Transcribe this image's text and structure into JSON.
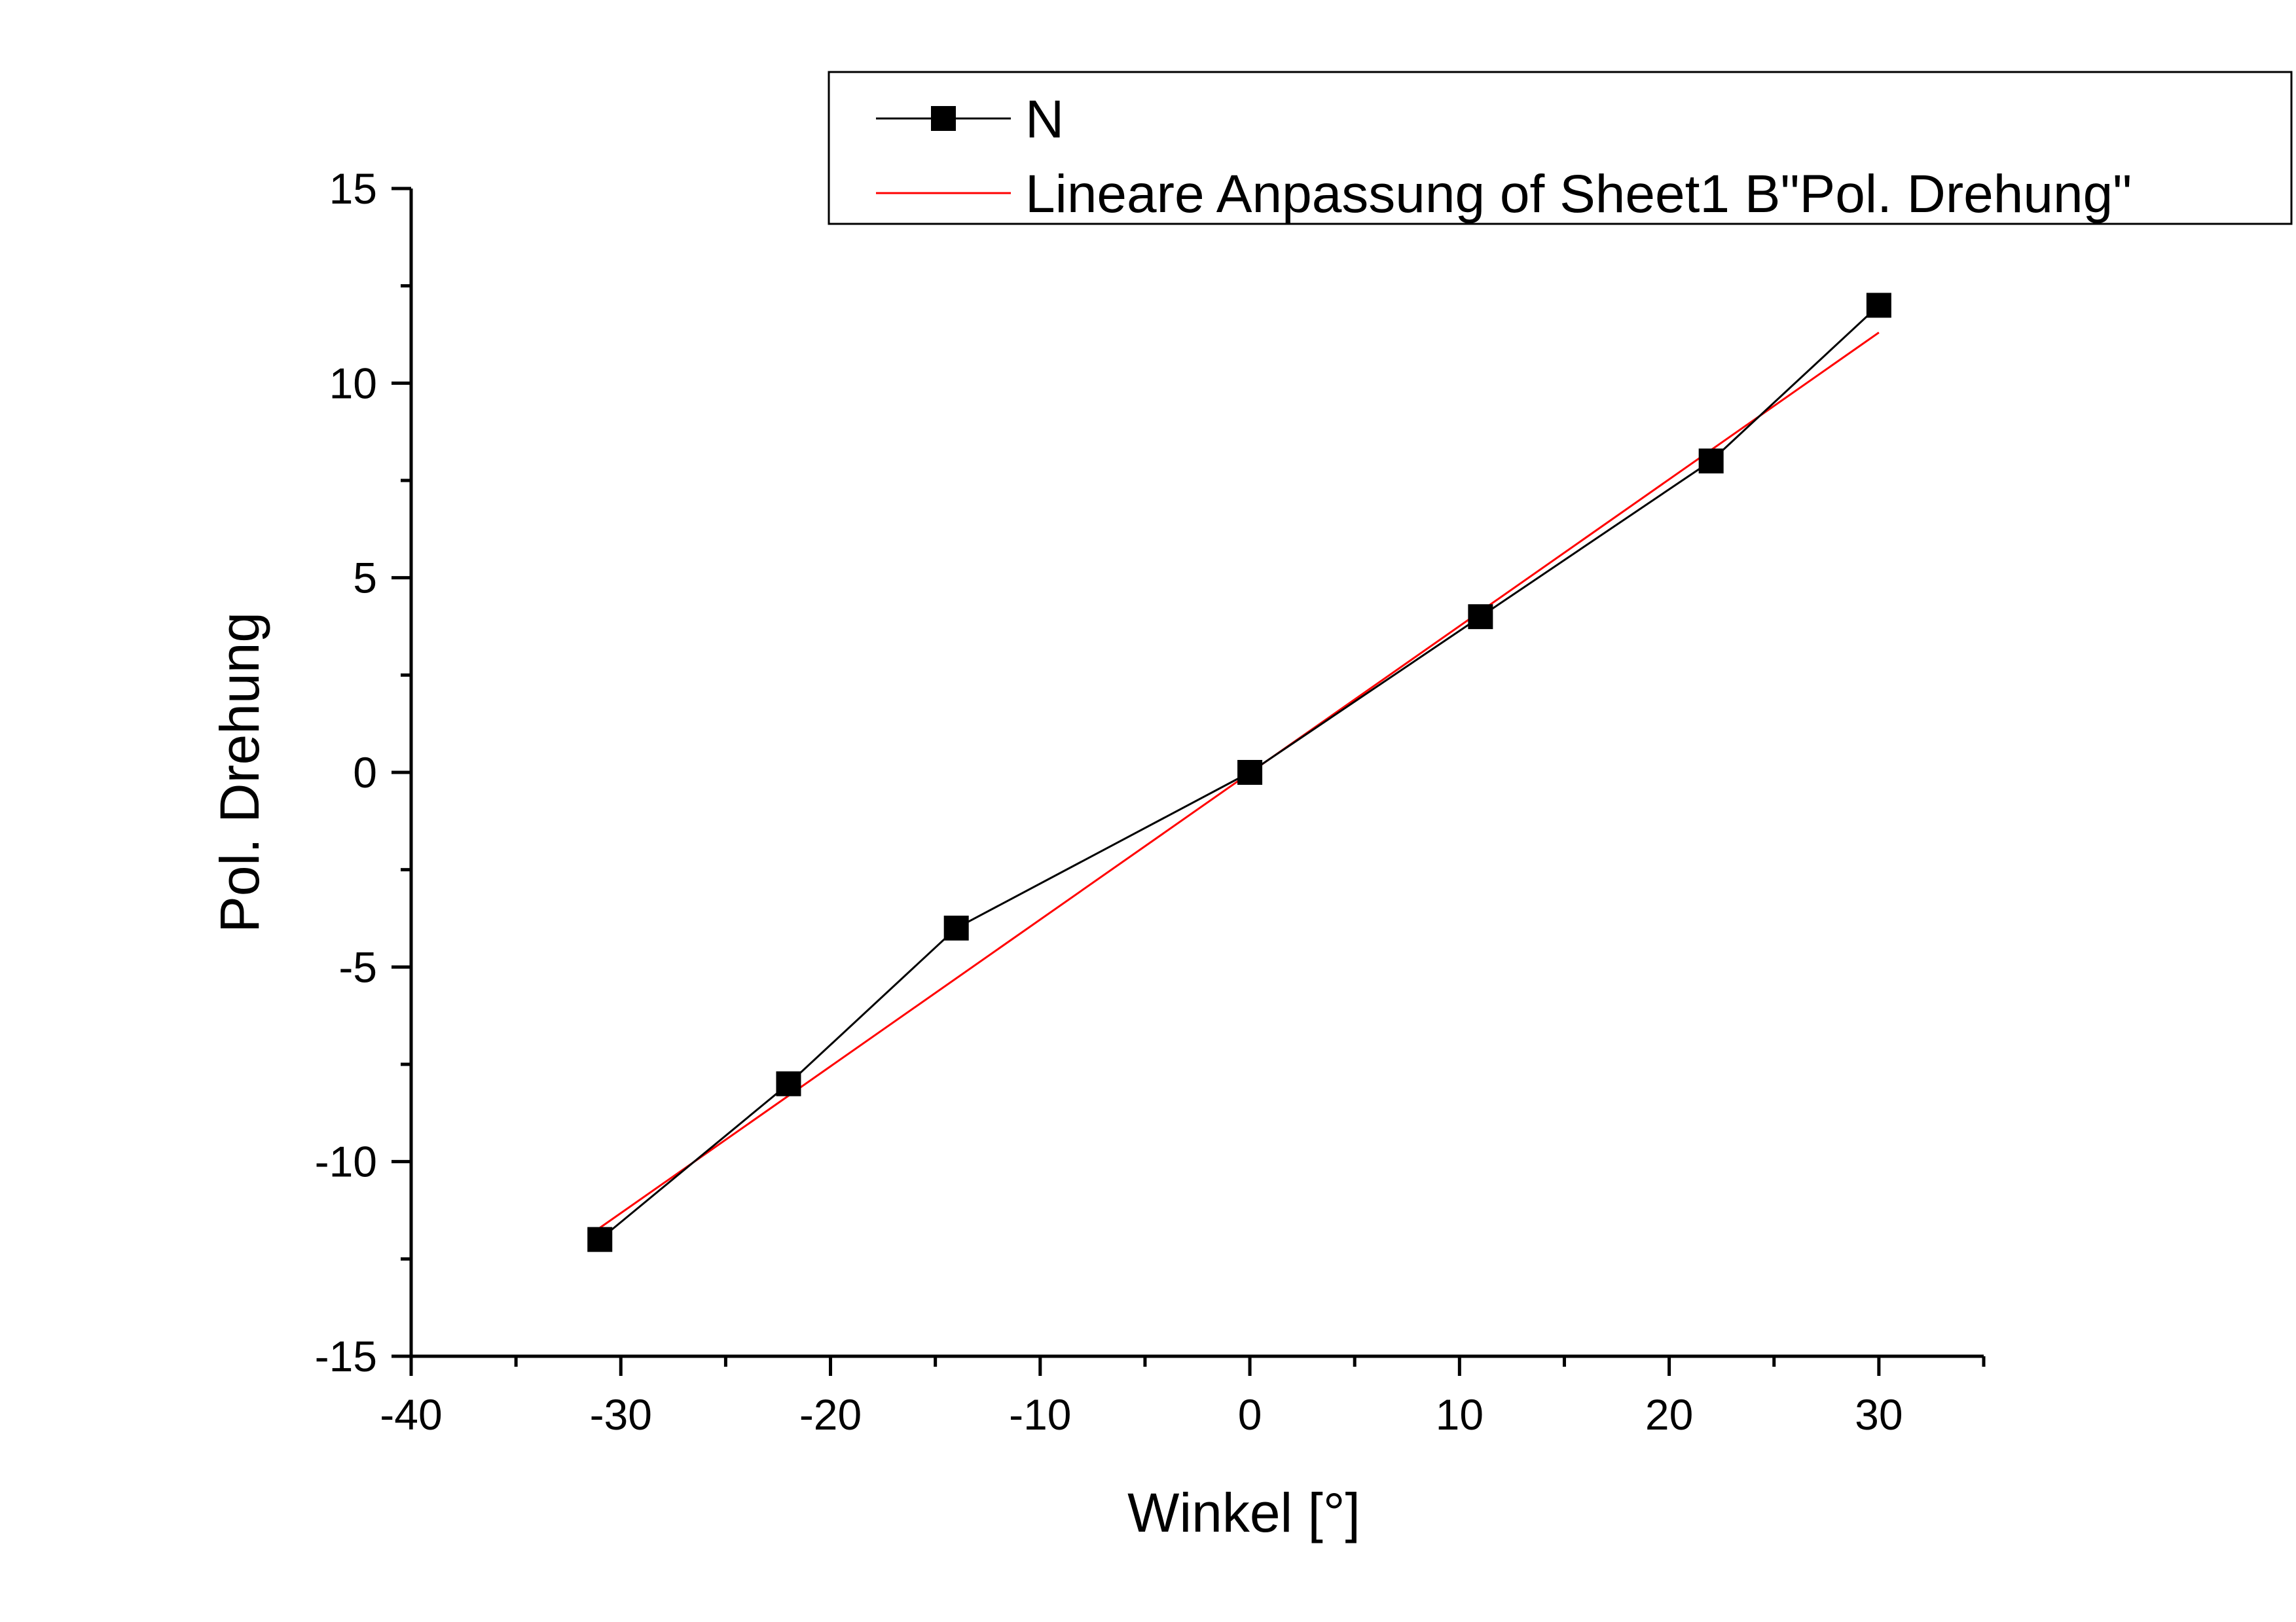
{
  "chart_data": {
    "type": "scatter",
    "xlabel": "Winkel [°]",
    "ylabel": "Pol. Drehung",
    "xlim": [
      -40,
      35
    ],
    "ylim": [
      -15,
      15
    ],
    "x_ticks": [
      -40,
      -30,
      -20,
      -10,
      0,
      10,
      20,
      30
    ],
    "y_ticks": [
      -15,
      -10,
      -5,
      0,
      5,
      10,
      15
    ],
    "x_minor_step": 5,
    "y_minor_step": 2.5,
    "grid": false,
    "legend_position": "top-right",
    "series": [
      {
        "name": "N",
        "kind": "line-with-markers",
        "marker": "square",
        "color": "#000000",
        "x": [
          -31,
          -22,
          -14,
          0,
          11,
          22,
          30
        ],
        "y": [
          -12,
          -8,
          -4,
          0,
          4,
          8,
          12
        ]
      },
      {
        "name": "Lineare Anpassung of Sheet1 B\"Pol. Drehung\"",
        "kind": "line",
        "color": "#ff0000",
        "x": [
          -31,
          30
        ],
        "y": [
          -11.7,
          11.3
        ]
      }
    ]
  }
}
